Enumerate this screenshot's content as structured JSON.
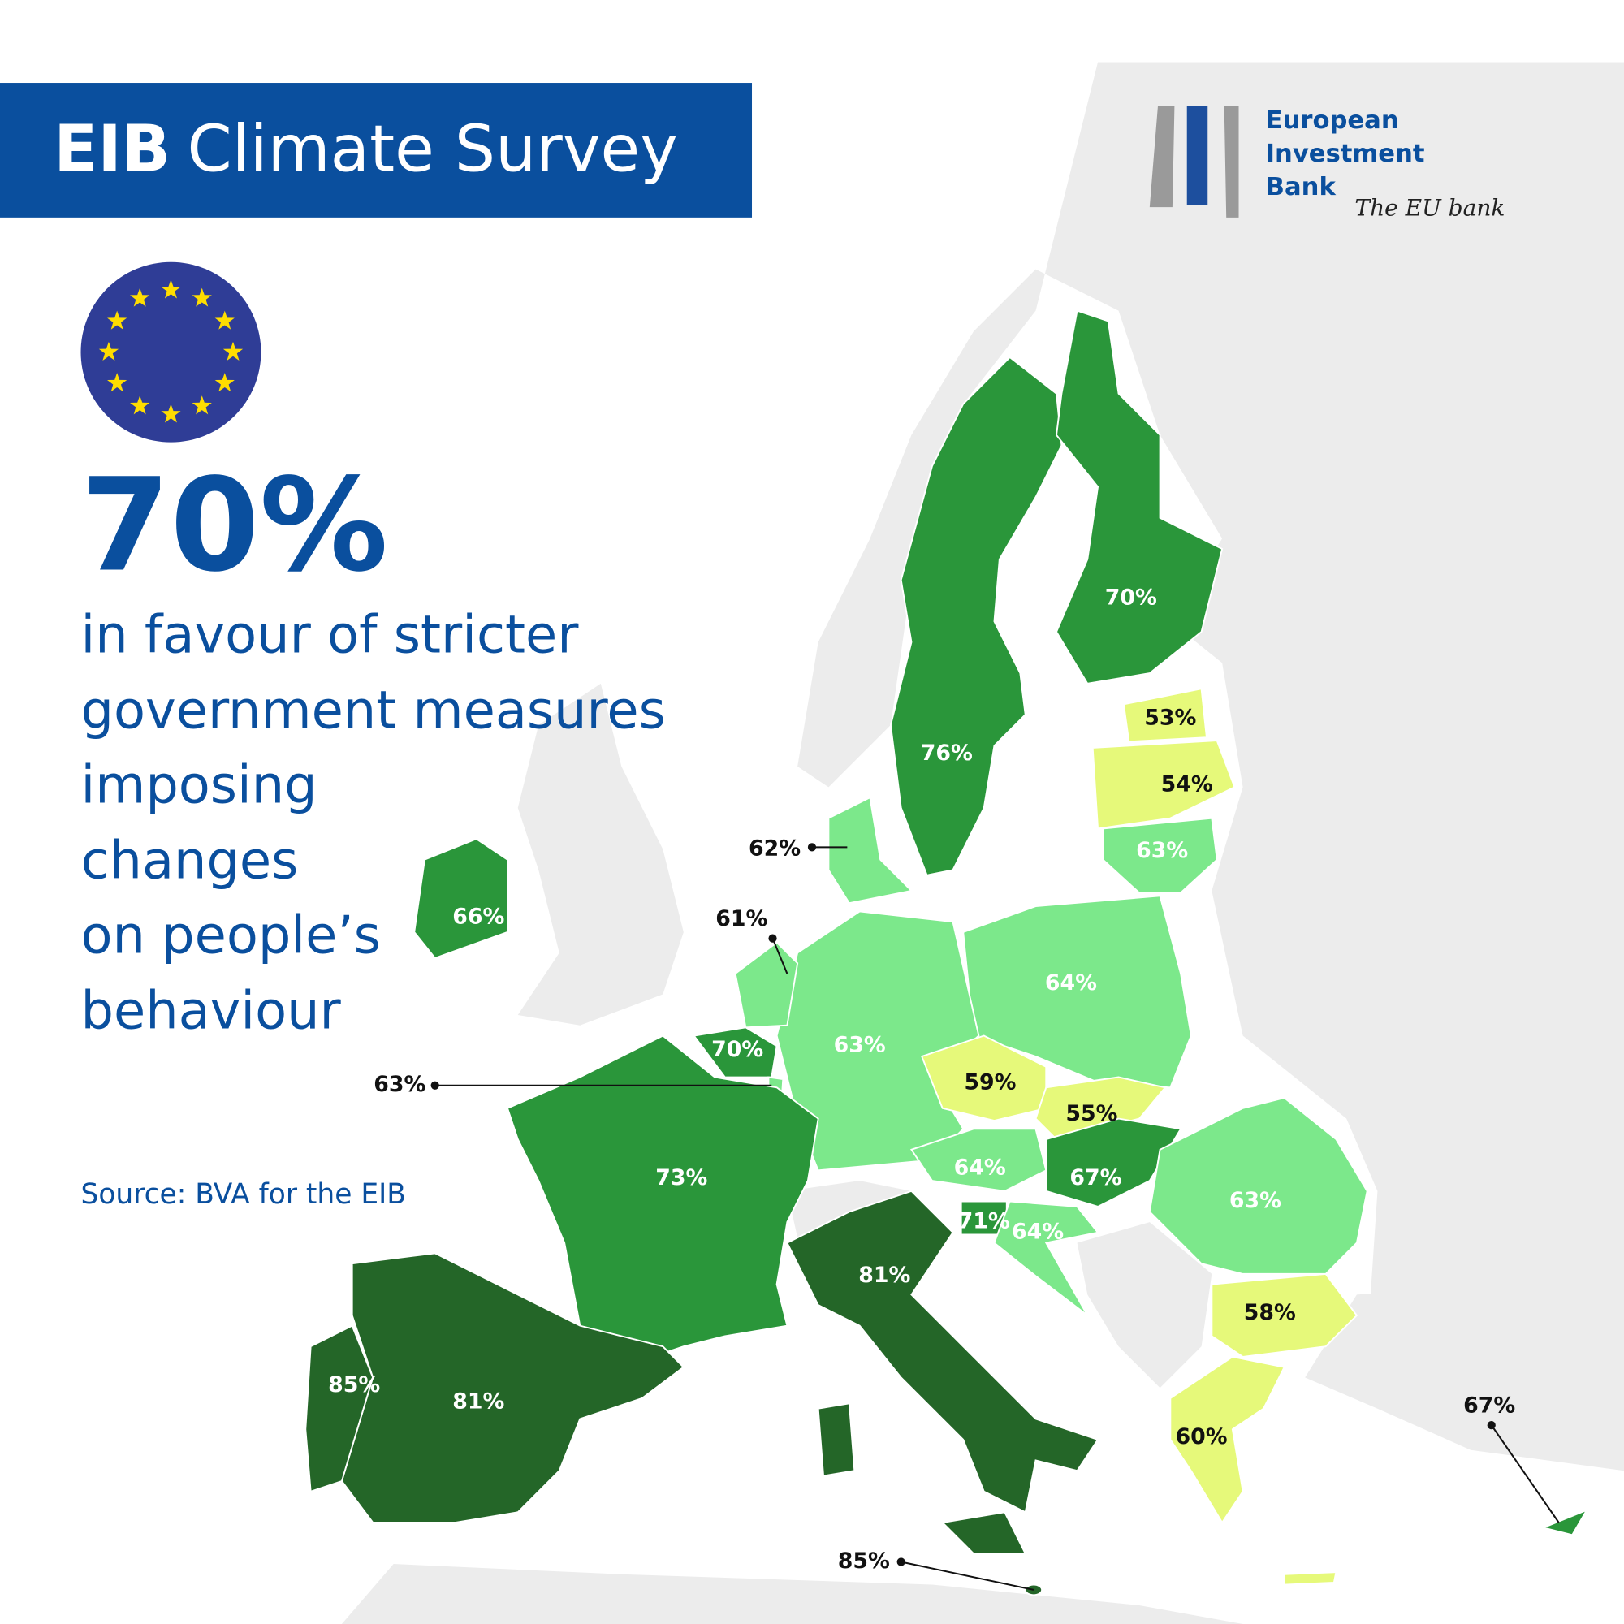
{
  "header": {
    "title_bold": "EIB",
    "title": "Climate Survey"
  },
  "logo": {
    "line1": "European",
    "line2": "Investment",
    "line3": "Bank",
    "tagline": "The EU bank"
  },
  "headline": {
    "figure": "70%",
    "lines": [
      "in favour of stricter",
      "government measures",
      "imposing",
      "changes",
      "on people’s",
      "behaviour"
    ]
  },
  "source": "Source: BVA for the EIB",
  "regions": [
    {
      "label": "76%",
      "color": "#2a963a"
    },
    {
      "label": "70%",
      "color": "#2a963a"
    },
    {
      "label": "53%",
      "color": "#e6f97a"
    },
    {
      "label": "54%",
      "color": "#e6f97a"
    },
    {
      "label": "63%",
      "color": "#7ce88b"
    },
    {
      "label": "62%",
      "color": "#7ce88b"
    },
    {
      "label": "64%",
      "color": "#7ce88b"
    },
    {
      "label": "63%",
      "color": "#7ce88b"
    },
    {
      "label": "61%",
      "color": "#7ce88b"
    },
    {
      "label": "70%",
      "color": "#2a963a"
    },
    {
      "label": "63%",
      "color": "#7ce88b"
    },
    {
      "label": "73%",
      "color": "#2a963a"
    },
    {
      "label": "81%",
      "color": "#246628"
    },
    {
      "label": "85%",
      "color": "#246628"
    },
    {
      "label": "81%",
      "color": "#246628"
    },
    {
      "label": "85%",
      "color": "#246628"
    },
    {
      "label": "59%",
      "color": "#e6f97a"
    },
    {
      "label": "55%",
      "color": "#e6f97a"
    },
    {
      "label": "64%",
      "color": "#7ce88b"
    },
    {
      "label": "67%",
      "color": "#2a963a"
    },
    {
      "label": "71%",
      "color": "#2a963a"
    },
    {
      "label": "64%",
      "color": "#7ce88b"
    },
    {
      "label": "63%",
      "color": "#7ce88b"
    },
    {
      "label": "58%",
      "color": "#e6f97a"
    },
    {
      "label": "60%",
      "color": "#e6f97a"
    },
    {
      "label": "67%",
      "color": "#2a963a"
    },
    {
      "label": "66%",
      "color": "#2a963a"
    }
  ]
}
